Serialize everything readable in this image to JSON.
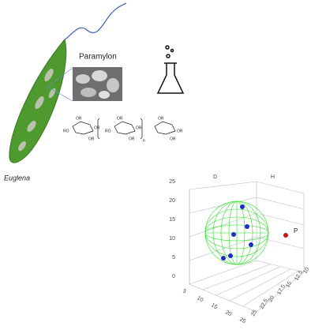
{
  "labels": {
    "paramylon": "Paramylon",
    "euglena": "Euglena"
  },
  "structure": {
    "groups": [
      "OR",
      "OR",
      "OR",
      "RO",
      "OR",
      "OR",
      "OR",
      "RO",
      "OR",
      "OR",
      "OR",
      "n"
    ]
  },
  "plot": {
    "axis_labels": {
      "d": "D",
      "h": "H",
      "p": "P"
    },
    "vertical_ticks": [
      "25",
      "20",
      "15",
      "10",
      "5",
      "0"
    ],
    "front_ticks": [
      "5",
      "10",
      "15",
      "20",
      "25"
    ],
    "side_ticks": [
      "25",
      "22.5",
      "20",
      "17.5",
      "15",
      "12.5",
      "10"
    ]
  }
}
